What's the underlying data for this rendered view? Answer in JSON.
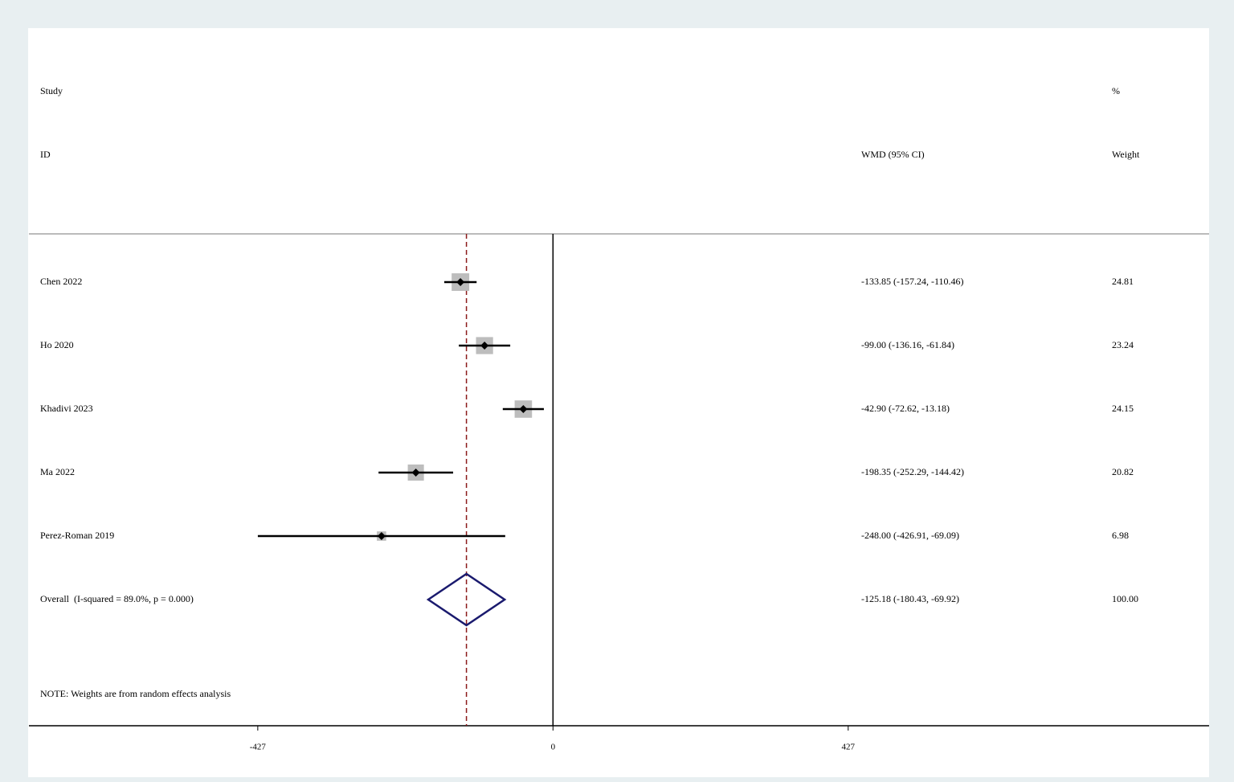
{
  "chart_data": {
    "type": "forest",
    "headers": {
      "study": "Study",
      "id": "ID",
      "ci": "WMD (95% CI)",
      "pct": "%",
      "weight": "Weight"
    },
    "studies": [
      "Chen 2022",
      "Ho 2020",
      "Khadivi 2023",
      "Ma 2022",
      "Perez-Roman 2019"
    ],
    "estimates": [
      -133.85,
      -99.0,
      -42.9,
      -198.35,
      -248.0
    ],
    "lower": [
      -157.24,
      -136.16,
      -72.62,
      -252.29,
      -426.91
    ],
    "upper": [
      -110.46,
      -61.84,
      -13.18,
      -144.42,
      -69.09
    ],
    "ci_labels": [
      "-133.85 (-157.24, -110.46)",
      "-99.00 (-136.16, -61.84)",
      "-42.90 (-72.62, -13.18)",
      "-198.35 (-252.29, -144.42)",
      "-248.00 (-426.91, -69.09)"
    ],
    "weights": [
      24.81,
      23.24,
      24.15,
      20.82,
      6.98
    ],
    "overall": {
      "label": "Overall  (I-squared = 89.0%, p = 0.000)",
      "estimate": -125.18,
      "lower": -180.43,
      "upper": -69.92,
      "ci_label": "-125.18 (-180.43, -69.92)",
      "weight": {
        "value": 100,
        "label": "100.00"
      }
    },
    "note": "NOTE: Weights are from random effects analysis",
    "xlim": [
      -758,
      949
    ],
    "xticks": [
      -427,
      0,
      427
    ],
    "reference": 0,
    "colors": {
      "box": "#bdbdbd",
      "ci": "#000000",
      "overall_line": "#8b1a1a",
      "diamond": "#1a1a6e"
    }
  }
}
